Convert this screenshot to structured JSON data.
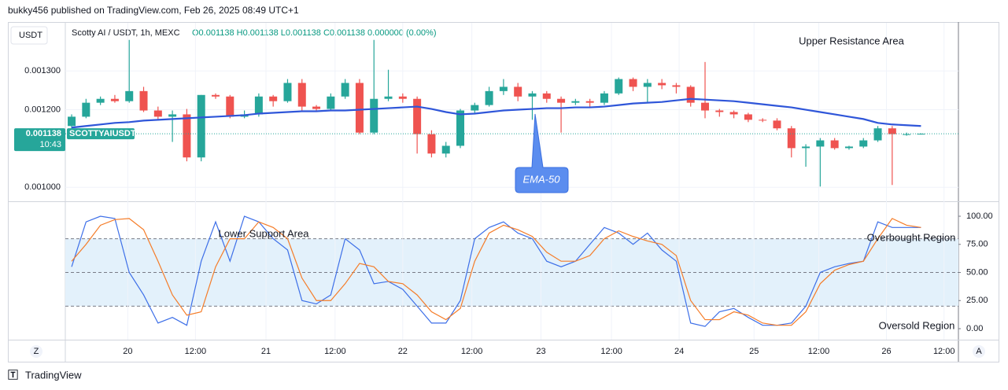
{
  "header": "bukky456 published on TradingView.com, Feb 26, 2025 08:49 UTC+1",
  "footer": "TradingView",
  "buttons": [
    "Z",
    "A"
  ],
  "chart_data": [
    {
      "type": "candlestick",
      "title": "Scotty AI / USDT, 1h, MEXC",
      "legend_ohlc": "O0.001138 H0.001138 L0.001138 C0.001138 0.000000 (0.00%)",
      "axis_label": "USDT",
      "symbol_label": "SCOTTYAIUSDT",
      "countdown": "10:43",
      "last_price": 0.001138,
      "up_color": "#26a69a",
      "down_color": "#ef5350",
      "open": [
        0.001158,
        0.001182,
        0.001218,
        0.001228,
        0.001222,
        0.001248,
        0.001198,
        0.001182,
        0.001188,
        0.001077,
        0.001238,
        0.001234,
        0.001182,
        0.001188,
        0.001234,
        0.001222,
        0.001269,
        0.001208,
        0.001202,
        0.001234,
        0.001269,
        0.001141,
        0.001228,
        0.001234,
        0.001228,
        0.001137,
        0.001087,
        0.001107,
        0.001198,
        0.001212,
        0.001248,
        0.001259,
        0.001234,
        0.001242,
        0.001228,
        0.001218,
        0.001222,
        0.001218,
        0.001242,
        0.001279,
        0.001259,
        0.001269,
        0.001263,
        0.001259,
        0.001218,
        0.001198,
        0.001194,
        0.001188,
        0.001174,
        0.001172,
        0.001152,
        0.001101,
        0.001105,
        0.001121,
        0.001101,
        0.001105,
        0.001121,
        0.001152,
        0.001137,
        0.001138
      ],
      "high": [
        0.001188,
        0.001228,
        0.001234,
        0.001238,
        0.00138,
        0.001259,
        0.001208,
        0.001198,
        0.001202,
        0.001238,
        0.001242,
        0.001238,
        0.001198,
        0.001242,
        0.001238,
        0.001279,
        0.001279,
        0.001212,
        0.001242,
        0.001279,
        0.001279,
        0.00138,
        0.001303,
        0.001242,
        0.001234,
        0.001147,
        0.001117,
        0.001202,
        0.001218,
        0.001259,
        0.001279,
        0.001269,
        0.001248,
        0.001248,
        0.001234,
        0.001228,
        0.001228,
        0.001248,
        0.001283,
        0.001283,
        0.001279,
        0.001279,
        0.001269,
        0.001263,
        0.001323,
        0.001202,
        0.001198,
        0.001192,
        0.001178,
        0.001178,
        0.001158,
        0.001111,
        0.001127,
        0.001127,
        0.001107,
        0.001127,
        0.001158,
        0.001158,
        0.001141,
        0.001139
      ],
      "low": [
        0.001147,
        0.001178,
        0.001212,
        0.001218,
        0.001218,
        0.001194,
        0.001174,
        0.001117,
        0.001067,
        0.001067,
        0.001228,
        0.001178,
        0.001178,
        0.001182,
        0.001208,
        0.001218,
        0.001198,
        0.001194,
        0.001198,
        0.001228,
        0.001137,
        0.001137,
        0.001222,
        0.001218,
        0.001087,
        0.001077,
        0.001077,
        0.001101,
        0.001188,
        0.001208,
        0.001238,
        0.001222,
        0.001174,
        0.001218,
        0.001141,
        0.001212,
        0.001208,
        0.001212,
        0.001238,
        0.001248,
        0.001218,
        0.001253,
        0.001242,
        0.001208,
        0.001178,
        0.001182,
        0.001178,
        0.001168,
        0.001168,
        0.001147,
        0.001077,
        0.001053,
        0.001002,
        0.001097,
        0.001097,
        0.001101,
        0.001117,
        0.001006,
        0.001133,
        0.001136
      ],
      "close": [
        0.001182,
        0.001218,
        0.001228,
        0.001222,
        0.001248,
        0.001198,
        0.001182,
        0.001188,
        0.001077,
        0.001238,
        0.001234,
        0.001182,
        0.001188,
        0.001234,
        0.001222,
        0.001269,
        0.001208,
        0.001202,
        0.001234,
        0.001269,
        0.001141,
        0.001228,
        0.001234,
        0.001228,
        0.001137,
        0.001087,
        0.001107,
        0.001198,
        0.001212,
        0.001248,
        0.001259,
        0.001234,
        0.001242,
        0.001228,
        0.001218,
        0.001222,
        0.001218,
        0.001242,
        0.001279,
        0.001259,
        0.001269,
        0.001263,
        0.001259,
        0.001218,
        0.001198,
        0.001194,
        0.001188,
        0.001174,
        0.001172,
        0.001152,
        0.001101,
        0.001105,
        0.001121,
        0.001101,
        0.001105,
        0.001121,
        0.001152,
        0.001137,
        0.001137,
        0.001138
      ],
      "series": [
        {
          "name": "EMA-50",
          "color": "#2f56d9",
          "values": [
            0.001154,
            0.001158,
            0.001162,
            0.001166,
            0.001168,
            0.001172,
            0.001174,
            0.001176,
            0.001178,
            0.00118,
            0.001182,
            0.001184,
            0.001186,
            0.00119,
            0.001192,
            0.001194,
            0.001196,
            0.001196,
            0.001198,
            0.001198,
            0.0012,
            0.001202,
            0.001204,
            0.001206,
            0.001208,
            0.001202,
            0.001194,
            0.001188,
            0.00119,
            0.001194,
            0.001198,
            0.0012,
            0.001202,
            0.001204,
            0.001204,
            0.001206,
            0.001206,
            0.001208,
            0.001212,
            0.001216,
            0.001218,
            0.00122,
            0.001224,
            0.001228,
            0.001226,
            0.001224,
            0.001222,
            0.001218,
            0.001214,
            0.00121,
            0.001206,
            0.0012,
            0.001194,
            0.001188,
            0.001182,
            0.001176,
            0.001166,
            0.001162,
            0.00116,
            0.001158
          ]
        }
      ],
      "ylim": [
        0.000966,
        0.001424
      ],
      "yticks": [
        {
          "value": 0.0013,
          "label": "0.001300"
        },
        {
          "value": 0.0012,
          "label": "0.001200"
        },
        {
          "value": 0.001,
          "label": "0.001000"
        }
      ],
      "xlim": [
        -0.44,
        61.6
      ],
      "grid": true,
      "annotations": [
        "Upper Resistance Area"
      ]
    },
    {
      "type": "line",
      "series": [
        {
          "color": "#3d6fe8",
          "values": [
            55,
            95,
            100,
            98,
            50,
            30,
            5,
            10,
            3,
            60,
            95,
            60,
            100,
            95,
            80,
            70,
            25,
            22,
            30,
            80,
            70,
            40,
            42,
            35,
            20,
            5,
            5,
            25,
            80,
            90,
            95,
            85,
            80,
            60,
            55,
            60,
            75,
            90,
            85,
            75,
            85,
            70,
            60,
            5,
            2,
            15,
            18,
            10,
            3,
            3,
            5,
            20,
            50,
            55,
            58,
            60,
            95,
            90,
            90,
            90
          ]
        },
        {
          "color": "#f57c28",
          "values": [
            60,
            75,
            92,
            97,
            98,
            88,
            60,
            30,
            12,
            15,
            55,
            80,
            80,
            95,
            90,
            80,
            45,
            25,
            25,
            40,
            58,
            55,
            42,
            40,
            30,
            15,
            8,
            18,
            60,
            85,
            92,
            88,
            82,
            68,
            60,
            60,
            65,
            80,
            87,
            82,
            78,
            75,
            65,
            25,
            8,
            8,
            15,
            12,
            5,
            3,
            3,
            15,
            40,
            52,
            57,
            60,
            80,
            98,
            92,
            90
          ]
        }
      ],
      "ylim": [
        -9.8,
        111.9
      ],
      "yticks": [
        {
          "value": 0,
          "label": "0.00"
        },
        {
          "value": 25,
          "label": "25.00"
        },
        {
          "value": 50,
          "label": "50.00"
        },
        {
          "value": 75,
          "label": "75.00"
        },
        {
          "value": 100,
          "label": "100.00"
        }
      ],
      "hlines": [
        20,
        50,
        80
      ],
      "band_color": "#e3f1fb",
      "xlim": [
        -0.44,
        61.6
      ],
      "xticks": [
        {
          "value": 3.9,
          "label": "20"
        },
        {
          "value": 8.6,
          "label": "12:00"
        },
        {
          "value": 13.5,
          "label": "21"
        },
        {
          "value": 18.3,
          "label": "12:00"
        },
        {
          "value": 23.0,
          "label": "22"
        },
        {
          "value": 27.8,
          "label": "12:00"
        },
        {
          "value": 32.6,
          "label": "23"
        },
        {
          "value": 37.5,
          "label": "12:00"
        },
        {
          "value": 42.2,
          "label": "24"
        },
        {
          "value": 47.4,
          "label": "25"
        },
        {
          "value": 51.9,
          "label": "12:00"
        },
        {
          "value": 56.6,
          "label": "26"
        },
        {
          "value": 60.6,
          "label": "12:00"
        }
      ],
      "annotations": [
        "Lower Support Area",
        "Overbought Region",
        "Oversold Region"
      ]
    }
  ]
}
